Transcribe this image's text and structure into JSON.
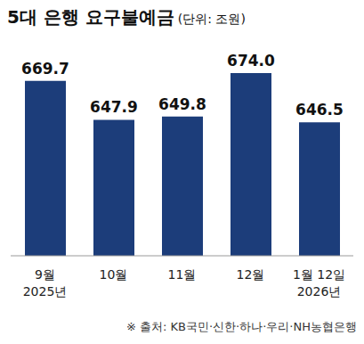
{
  "chart_data": {
    "type": "bar",
    "title": "5대 은행 요구불예금",
    "subtitle": "(단위: 조원)",
    "categories": [
      "9월\n2025년",
      "10월",
      "11월",
      "12월",
      "1월 12일\n2026년"
    ],
    "values": [
      669.7,
      647.9,
      649.8,
      674.0,
      646.5
    ],
    "value_labels": [
      "669.7",
      "647.9",
      "649.8",
      "674.0",
      "646.5"
    ],
    "data_labels": true,
    "color": "#1c3d7a",
    "ylim": [
      572,
      680
    ],
    "yticks": [
      572,
      680
    ],
    "tick_labels": "x",
    "grid": false,
    "annotations": [
      "※ 출처: KB국민·신한·하나·우리·NH농협은행"
    ]
  }
}
